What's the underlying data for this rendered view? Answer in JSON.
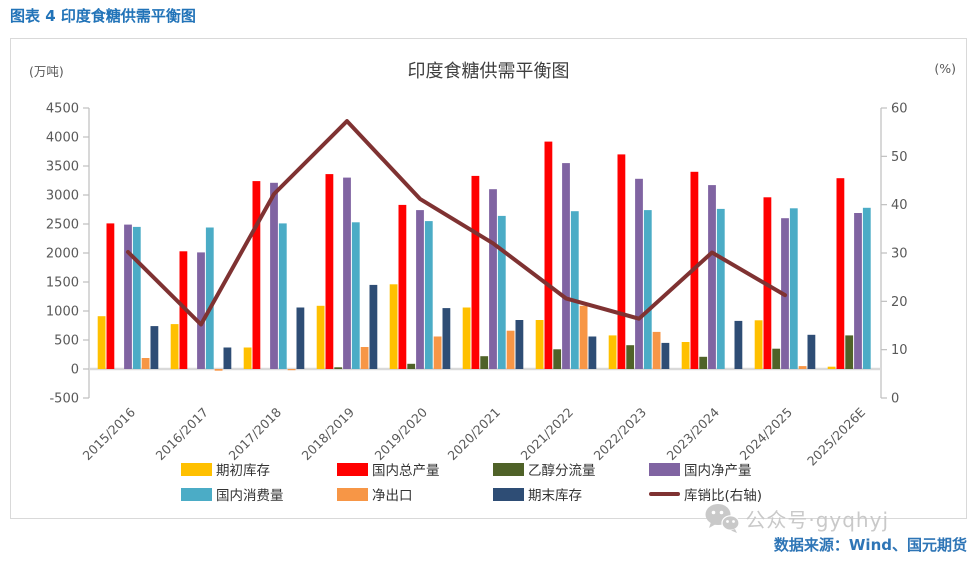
{
  "header": {
    "title": "图表 4 印度食糖供需平衡图"
  },
  "footer": {
    "watermark": "公众号·gyqhyj",
    "source": "数据来源：Wind、国元期货"
  },
  "chart_data": {
    "type": "bar",
    "title": "印度食糖供需平衡图",
    "grid": "off",
    "legend_position": "bottom",
    "left_axis": {
      "unit": "(万吨)",
      "min": -500,
      "max": 4500,
      "step": 500
    },
    "right_axis": {
      "unit": "(%)",
      "min": 0,
      "max": 60,
      "step": 10
    },
    "categories": [
      "2015/2016",
      "2016/2017",
      "2017/2018",
      "2018/2019",
      "2019/2020",
      "2020/2021",
      "2021/2022",
      "2022/2023",
      "2023/2024",
      "2024/2025",
      "2025/2026E"
    ],
    "series": [
      {
        "name": "期初库存",
        "type": "bar",
        "color": "#FFC000",
        "values": [
          910,
          775,
          370,
          1090,
          1460,
          1060,
          845,
          580,
          465,
          840,
          40
        ]
      },
      {
        "name": "国内总产量",
        "type": "bar",
        "color": "#FF0000",
        "values": [
          2510,
          2030,
          3240,
          3360,
          2830,
          3330,
          3920,
          3700,
          3400,
          2960,
          3290
        ]
      },
      {
        "name": "乙醇分流量",
        "type": "bar",
        "color": "#4F6228",
        "values": [
          0,
          0,
          0,
          30,
          90,
          220,
          340,
          410,
          210,
          350,
          580
        ]
      },
      {
        "name": "国内净产量",
        "type": "bar",
        "color": "#8064A2",
        "values": [
          2490,
          2010,
          3210,
          3300,
          2740,
          3100,
          3550,
          3280,
          3170,
          2600,
          2690
        ]
      },
      {
        "name": "国内消费量",
        "type": "bar",
        "color": "#4BACC6",
        "values": [
          2450,
          2440,
          2510,
          2530,
          2550,
          2640,
          2720,
          2740,
          2760,
          2770,
          2780
        ]
      },
      {
        "name": "净出口",
        "type": "bar",
        "color": "#F79646",
        "values": [
          190,
          -30,
          -20,
          380,
          560,
          660,
          1090,
          640,
          0,
          50,
          0
        ]
      },
      {
        "name": "期末库存",
        "type": "bar",
        "color": "#2E4D75",
        "values": [
          740,
          370,
          1060,
          1450,
          1050,
          845,
          560,
          450,
          830,
          590,
          0
        ]
      },
      {
        "name": "库销比(右轴)",
        "type": "line",
        "axis": "right",
        "color": "#7F3232",
        "values": [
          30.2,
          15.2,
          42.2,
          57.3,
          41.2,
          32.0,
          20.6,
          16.4,
          30.1,
          21.3,
          null
        ]
      }
    ]
  }
}
